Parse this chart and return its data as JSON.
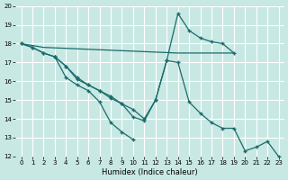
{
  "xlabel": "Humidex (Indice chaleur)",
  "xlim": [
    -0.5,
    23.5
  ],
  "ylim": [
    12,
    20
  ],
  "xticks": [
    0,
    1,
    2,
    3,
    4,
    5,
    6,
    7,
    8,
    9,
    10,
    11,
    12,
    13,
    14,
    15,
    16,
    17,
    18,
    19,
    20,
    21,
    22,
    23
  ],
  "yticks": [
    12,
    13,
    14,
    15,
    16,
    17,
    18,
    19,
    20
  ],
  "bg_color": "#c8e8e4",
  "line_color": "#1a6b6b",
  "grid_color": "#ffffff",
  "line1_x": [
    0,
    2,
    14,
    19
  ],
  "line1_y": [
    18,
    17.8,
    17.5,
    17.5
  ],
  "line2_x": [
    0,
    1,
    2,
    3,
    4,
    5,
    6,
    7,
    8,
    9,
    10
  ],
  "line2_y": [
    18,
    17.8,
    17.5,
    17.3,
    16.2,
    15.8,
    15.5,
    14.9,
    13.8,
    13.3,
    12.9
  ],
  "line3_x": [
    3,
    4,
    5,
    6,
    7,
    8,
    9,
    10,
    11,
    12,
    13,
    14,
    15,
    16,
    17,
    18,
    19
  ],
  "line3_y": [
    17.3,
    16.8,
    16.1,
    15.8,
    15.5,
    15.2,
    14.8,
    14.1,
    13.9,
    15.0,
    17.1,
    19.6,
    18.7,
    18.3,
    18.1,
    18.0,
    17.5
  ],
  "line4_x": [
    0,
    1,
    2,
    3,
    4,
    5,
    6,
    7,
    8,
    9,
    10,
    11,
    12,
    13,
    14,
    15,
    16,
    17,
    18,
    19,
    20,
    21,
    22,
    23
  ],
  "line4_y": [
    18,
    17.8,
    17.5,
    17.3,
    16.8,
    16.2,
    15.8,
    15.5,
    15.1,
    14.8,
    14.5,
    14.0,
    15.0,
    17.1,
    17.0,
    14.9,
    14.3,
    13.8,
    13.5,
    13.5,
    12.3,
    12.5,
    12.8,
    12.0
  ]
}
